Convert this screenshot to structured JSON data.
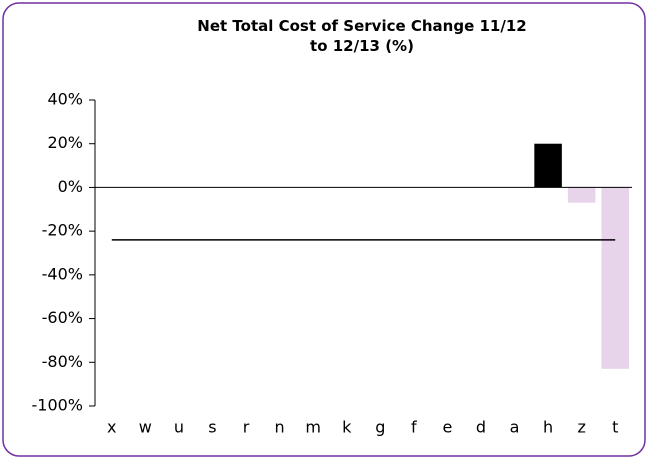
{
  "chart_data": {
    "type": "bar",
    "title": "Net Total Cost of Service Change 11/12 to 12/13 (%)",
    "categories": [
      "x",
      "w",
      "u",
      "s",
      "r",
      "n",
      "m",
      "k",
      "g",
      "f",
      "e",
      "d",
      "a",
      "h",
      "z",
      "t"
    ],
    "values": [
      0,
      0,
      0,
      0,
      0,
      0,
      0,
      0,
      0,
      0,
      0,
      0,
      0,
      20,
      -7,
      -83
    ],
    "colors": [
      "#000000",
      "#000000",
      "#000000",
      "#000000",
      "#000000",
      "#000000",
      "#000000",
      "#000000",
      "#000000",
      "#000000",
      "#000000",
      "#000000",
      "#000000",
      "#000000",
      "#e8d4ea",
      "#e8d4ea"
    ],
    "reference_line": {
      "value": -24,
      "color": "#000000"
    },
    "ylim": [
      -100,
      40
    ],
    "yticks": [
      {
        "value": -100,
        "label": "-100%"
      },
      {
        "value": -80,
        "label": "-80%"
      },
      {
        "value": -60,
        "label": "-60%"
      },
      {
        "value": -40,
        "label": "-40%"
      },
      {
        "value": -20,
        "label": "-20%"
      },
      {
        "value": 0,
        "label": "0%"
      },
      {
        "value": 20,
        "label": "20%"
      },
      {
        "value": 40,
        "label": "40%"
      }
    ],
    "grid": false
  }
}
